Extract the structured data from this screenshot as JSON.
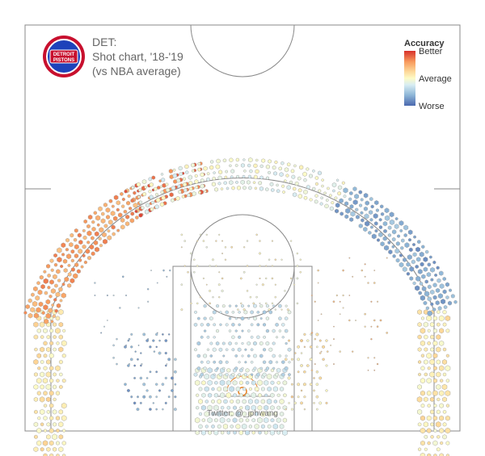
{
  "header": {
    "team": "DET:",
    "subtitle": "Shot chart, '18-'19",
    "comparison": "(vs NBA average)",
    "logo_text": [
      "DETROIT",
      "PISTONS"
    ]
  },
  "legend": {
    "title": "Accuracy",
    "top_label": "Better",
    "mid_label": "Average",
    "bottom_label": "Worse",
    "colors": [
      "#d7302b",
      "#f89a5c",
      "#fdd99a",
      "#fdfbc6",
      "#d8edf3",
      "#90b8d8",
      "#4a68ae"
    ]
  },
  "credit": "Twitter: @_jphwang",
  "colors": {
    "logo_red": "#c8102e",
    "logo_blue": "#1d42ba",
    "court_line": "#888888",
    "hex_stroke": "#999999"
  },
  "chart_data": {
    "type": "heatmap",
    "description_units": "court feet; x = left(-)/right(+) from basket, y = distance from baseline toward half court",
    "xlim": [
      -25,
      25
    ],
    "ylim": [
      0,
      47
    ],
    "color_scale": "accuracy relative to NBA average, -1 = worse, +1 = better",
    "zones": [
      {
        "name": "left corner three",
        "cx": -22.1,
        "cy": 4.5,
        "w": 1.7,
        "h": 9.5,
        "acc": 0.12,
        "density": 0.9,
        "size": 1.0
      },
      {
        "name": "right corner three",
        "cx": 22.1,
        "cy": 4.5,
        "w": 1.7,
        "h": 9.5,
        "acc": 0.1,
        "density": 0.9,
        "size": 1.0
      },
      {
        "name": "left wing three",
        "arc": true,
        "a0": 118,
        "a1": 160,
        "acc": 0.55,
        "density": 0.95,
        "size": 0.95
      },
      {
        "name": "left deep wing three",
        "arc": true,
        "a0": 100,
        "a1": 120,
        "acc": 0.75,
        "density": 0.6,
        "size": 0.85
      },
      {
        "name": "top of key three",
        "arc": true,
        "a0": 62,
        "a1": 118,
        "acc": -0.1,
        "density": 0.85,
        "size": 0.8
      },
      {
        "name": "right wing three",
        "arc": true,
        "a0": 22,
        "a1": 62,
        "acc": -0.65,
        "density": 0.95,
        "size": 0.95
      },
      {
        "name": "restricted area",
        "cx": 0,
        "cy": 3.6,
        "w": 5.2,
        "h": 3.8,
        "acc": -0.18,
        "density": 1.0,
        "size": 1.0
      },
      {
        "name": "paint",
        "cx": 0,
        "cy": 10.5,
        "w": 5.4,
        "h": 4.0,
        "acc": -0.32,
        "density": 0.8,
        "size": 0.7
      },
      {
        "name": "left mid-range baseline",
        "cx": -10.5,
        "cy": 7.0,
        "w": 3.0,
        "h": 4.5,
        "acc": -0.65,
        "density": 0.55,
        "size": 0.55
      },
      {
        "name": "right short mid-range",
        "cx": 7.5,
        "cy": 7.0,
        "w": 2.5,
        "h": 4.5,
        "acc": 0.15,
        "density": 0.55,
        "size": 0.55
      },
      {
        "name": "elbow / free-throw area",
        "cx": 0,
        "cy": 18.5,
        "w": 7.0,
        "h": 4.5,
        "acc": 0.05,
        "density": 0.3,
        "size": 0.4
      },
      {
        "name": "long two left",
        "cx": -12.5,
        "cy": 13.5,
        "w": 4.5,
        "h": 6.5,
        "acc": -0.55,
        "density": 0.18,
        "size": 0.35
      },
      {
        "name": "long two right",
        "cx": 12.5,
        "cy": 13.5,
        "w": 4.5,
        "h": 6.5,
        "acc": 0.35,
        "density": 0.18,
        "size": 0.35
      }
    ]
  }
}
